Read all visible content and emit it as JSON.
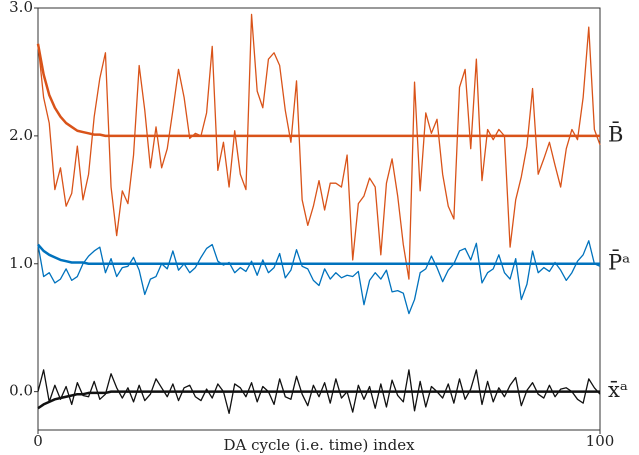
{
  "chart_data": {
    "type": "line",
    "xlabel": "DA cycle (i.e. time) index",
    "x": [
      0,
      1,
      2,
      3,
      4,
      5,
      6,
      7,
      8,
      9,
      10,
      11,
      12,
      13,
      14,
      15,
      16,
      17,
      18,
      19,
      20,
      21,
      22,
      23,
      24,
      25,
      26,
      27,
      28,
      29,
      30,
      31,
      32,
      33,
      34,
      35,
      36,
      37,
      38,
      39,
      40,
      41,
      42,
      43,
      44,
      45,
      46,
      47,
      48,
      49,
      50,
      51,
      52,
      53,
      54,
      55,
      56,
      57,
      58,
      59,
      60,
      61,
      62,
      63,
      64,
      65,
      66,
      67,
      68,
      69,
      70,
      71,
      72,
      73,
      74,
      75,
      76,
      77,
      78,
      79,
      80,
      81,
      82,
      83,
      84,
      85,
      86,
      87,
      88,
      89,
      90,
      91,
      92,
      93,
      94,
      95,
      96,
      97,
      98,
      99,
      100
    ],
    "xlim": [
      0,
      100
    ],
    "xticks": [
      0,
      100
    ],
    "ylim": [
      -0.3,
      3.0
    ],
    "yticks": [
      {
        "value": 0,
        "label": "0.0"
      },
      {
        "value": 1,
        "label": "1.0"
      },
      {
        "value": 2,
        "label": "2.0"
      },
      {
        "value": 3,
        "label": "3.0"
      }
    ],
    "series": [
      {
        "color": "#d95319",
        "width": 1.3,
        "values": [
          2.72,
          2.3,
          2.1,
          1.58,
          1.75,
          1.45,
          1.55,
          1.92,
          1.5,
          1.7,
          2.15,
          2.45,
          2.65,
          1.6,
          1.22,
          1.57,
          1.47,
          1.85,
          2.55,
          2.2,
          1.75,
          2.07,
          1.75,
          1.9,
          2.2,
          2.52,
          2.3,
          1.98,
          2.02,
          2.0,
          2.18,
          2.7,
          1.73,
          1.95,
          1.6,
          2.04,
          1.7,
          1.58,
          2.95,
          2.35,
          2.22,
          2.6,
          2.65,
          2.55,
          2.2,
          1.95,
          2.43,
          1.5,
          1.3,
          1.45,
          1.65,
          1.42,
          1.63,
          1.63,
          1.6,
          1.85,
          1.03,
          1.47,
          1.53,
          1.67,
          1.6,
          1.07,
          1.63,
          1.82,
          1.53,
          1.15,
          0.88,
          2.42,
          1.57,
          2.18,
          2.02,
          2.13,
          1.7,
          1.45,
          1.35,
          2.38,
          2.52,
          1.9,
          2.6,
          1.65,
          2.05,
          1.97,
          2.05,
          2.0,
          1.13,
          1.5,
          1.68,
          1.92,
          2.37,
          1.7,
          1.82,
          1.95,
          1.77,
          1.6,
          1.9,
          2.05,
          1.97,
          2.3,
          2.85,
          2.05,
          1.93
        ]
      },
      {
        "name": "B̄",
        "color": "#d95319",
        "width": 2.5,
        "values": [
          2.72,
          2.48,
          2.32,
          2.22,
          2.15,
          2.1,
          2.07,
          2.04,
          2.03,
          2.02,
          2.01,
          2.01,
          2,
          2,
          2,
          2,
          2,
          2,
          2,
          2,
          2,
          2,
          2,
          2,
          2,
          2,
          2,
          2,
          2,
          2,
          2,
          2,
          2,
          2,
          2,
          2,
          2,
          2,
          2,
          2,
          2,
          2,
          2,
          2,
          2,
          2,
          2,
          2,
          2,
          2,
          2,
          2,
          2,
          2,
          2,
          2,
          2,
          2,
          2,
          2,
          2,
          2,
          2,
          2,
          2,
          2,
          2,
          2,
          2,
          2,
          2,
          2,
          2,
          2,
          2,
          2,
          2,
          2,
          2,
          2,
          2,
          2,
          2,
          2,
          2,
          2,
          2,
          2,
          2,
          2,
          2,
          2,
          2,
          2,
          2,
          2,
          2,
          2,
          2,
          2,
          2
        ]
      },
      {
        "color": "#0072bd",
        "width": 1.3,
        "values": [
          1.15,
          0.9,
          0.93,
          0.85,
          0.88,
          0.96,
          0.87,
          0.9,
          1.0,
          1.06,
          1.1,
          1.13,
          0.93,
          1.04,
          0.9,
          0.97,
          0.98,
          1.05,
          0.95,
          0.76,
          0.88,
          0.9,
          1.0,
          0.96,
          1.1,
          0.95,
          1.0,
          0.93,
          0.97,
          1.05,
          1.12,
          1.15,
          1.02,
          0.99,
          1.01,
          0.93,
          0.97,
          0.94,
          1.02,
          0.91,
          1.03,
          0.93,
          0.97,
          1.08,
          0.89,
          0.95,
          1.11,
          0.98,
          0.96,
          0.87,
          0.83,
          0.96,
          0.88,
          0.93,
          0.89,
          0.91,
          0.9,
          0.94,
          0.68,
          0.87,
          0.93,
          0.88,
          0.95,
          0.78,
          0.79,
          0.77,
          0.61,
          0.72,
          0.93,
          0.96,
          1.06,
          0.97,
          0.86,
          0.95,
          1.0,
          1.1,
          1.12,
          1.03,
          1.16,
          0.85,
          0.93,
          0.96,
          1.07,
          0.93,
          0.88,
          1.04,
          0.72,
          0.84,
          1.1,
          0.93,
          0.97,
          0.94,
          1.01,
          0.95,
          0.87,
          0.93,
          1.02,
          1.07,
          1.18,
          1.0,
          0.98
        ]
      },
      {
        "name": "P̄ᵃ",
        "color": "#0072bd",
        "width": 2.5,
        "values": [
          1.15,
          1.1,
          1.07,
          1.05,
          1.03,
          1.02,
          1.01,
          1.01,
          1.01,
          1,
          1,
          1,
          1,
          1,
          1,
          1,
          1,
          1,
          1,
          1,
          1,
          1,
          1,
          1,
          1,
          1,
          1,
          1,
          1,
          1,
          1,
          1,
          1,
          1,
          1,
          1,
          1,
          1,
          1,
          1,
          1,
          1,
          1,
          1,
          1,
          1,
          1,
          1,
          1,
          1,
          1,
          1,
          1,
          1,
          1,
          1,
          1,
          1,
          1,
          1,
          1,
          1,
          1,
          1,
          1,
          1,
          1,
          1,
          1,
          1,
          1,
          1,
          1,
          1,
          1,
          1,
          1,
          1,
          1,
          1,
          1,
          1,
          1,
          1,
          1,
          1,
          1,
          1,
          1,
          1,
          1,
          1,
          1,
          1,
          1,
          1,
          1,
          1,
          1,
          1,
          1
        ]
      },
      {
        "color": "#111111",
        "width": 1.3,
        "values": [
          0.0,
          0.17,
          -0.08,
          0.05,
          -0.06,
          0.04,
          -0.1,
          0.07,
          -0.03,
          -0.04,
          0.08,
          -0.06,
          -0.02,
          0.14,
          0.03,
          -0.05,
          0.03,
          -0.08,
          0.05,
          -0.07,
          -0.02,
          0.1,
          0.03,
          -0.04,
          0.06,
          -0.07,
          0.03,
          0.05,
          -0.04,
          -0.07,
          0.02,
          -0.05,
          0.06,
          0.0,
          -0.17,
          0.06,
          0.03,
          -0.04,
          0.07,
          -0.08,
          0.04,
          0.0,
          -0.1,
          0.1,
          -0.04,
          -0.06,
          0.12,
          -0.02,
          -0.11,
          0.05,
          -0.04,
          0.07,
          -0.09,
          0.1,
          -0.05,
          0.0,
          -0.16,
          0.05,
          -0.06,
          0.04,
          -0.13,
          0.06,
          -0.12,
          0.09,
          -0.03,
          -0.08,
          0.17,
          -0.15,
          0.08,
          -0.12,
          0.04,
          0.0,
          -0.05,
          0.06,
          -0.09,
          0.1,
          -0.06,
          0.02,
          0.17,
          -0.1,
          0.08,
          -0.08,
          0.03,
          -0.04,
          0.05,
          0.11,
          -0.11,
          0.01,
          0.07,
          -0.02,
          -0.05,
          0.05,
          -0.04,
          0.02,
          0.03,
          0.0,
          -0.06,
          -0.09,
          0.1,
          0.03,
          -0.02
        ]
      },
      {
        "name": "x̄ᵃ",
        "color": "#111111",
        "width": 2.5,
        "values": [
          -0.13,
          -0.1,
          -0.08,
          -0.06,
          -0.05,
          -0.04,
          -0.03,
          -0.02,
          -0.02,
          -0.01,
          -0.01,
          -0.01,
          -0.01,
          0,
          0,
          0,
          0,
          0,
          0,
          0,
          0,
          0,
          0,
          0,
          0,
          0,
          0,
          0,
          0,
          0,
          0,
          0,
          0,
          0,
          0,
          0,
          0,
          0,
          0,
          0,
          0,
          0,
          0,
          0,
          0,
          0,
          0,
          0,
          0,
          0,
          0,
          0,
          0,
          0,
          0,
          0,
          0,
          0,
          0,
          0,
          0,
          0,
          0,
          0,
          0,
          0,
          0,
          0,
          0,
          0,
          0,
          0,
          0,
          0,
          0,
          0,
          0,
          0,
          0,
          0,
          0,
          0,
          0,
          0,
          0,
          0,
          0,
          0,
          0,
          0,
          0,
          0,
          0,
          0,
          0,
          0,
          0,
          0,
          0,
          0,
          0
        ]
      }
    ]
  }
}
